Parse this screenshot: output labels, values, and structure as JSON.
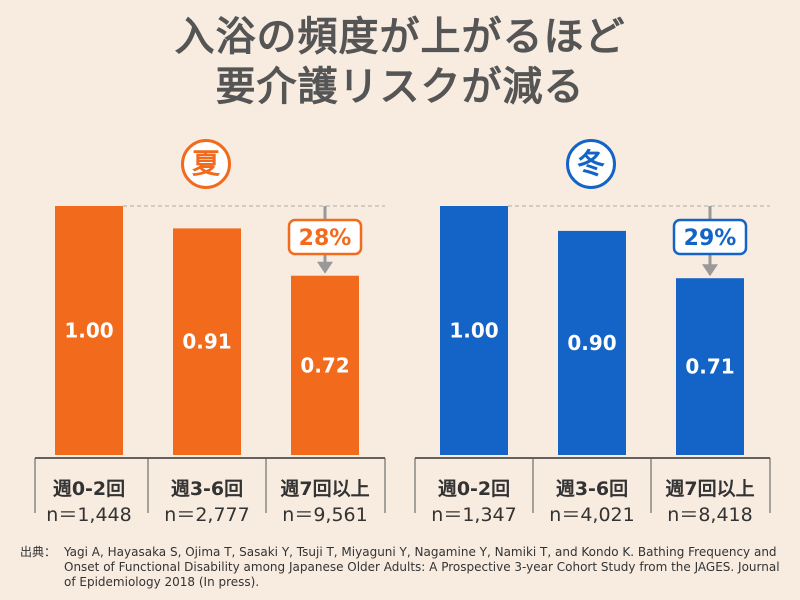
{
  "title": {
    "line1": "入浴の頻度が上がるほど",
    "line2": "要介護リスクが減る"
  },
  "source": {
    "lead": "出典：",
    "text": "Yagi A, Hayasaka S, Ojima T, Sasaki Y, Tsuji T, Miyaguni Y, Nagamine Y, Namiki T, and Kondo K. Bathing Frequency and Onset of Functional Disability among Japanese Older Adults: A Prospective 3-year Cohort Study from the JAGES. Journal of Epidemiology 2018 (In press)."
  },
  "chart_data": [
    {
      "type": "bar",
      "title": "夏",
      "color": "#f26a1b",
      "categories": [
        "週0-2回",
        "週3-6回",
        "週7回以上"
      ],
      "n_labels": [
        "n＝1,448",
        "n＝2,777",
        "n＝9,561"
      ],
      "values": [
        1.0,
        0.91,
        0.72
      ],
      "value_labels": [
        "1.00",
        "0.91",
        "0.72"
      ],
      "reduction_label": "28%",
      "ylim": [
        0,
        1.0
      ]
    },
    {
      "type": "bar",
      "title": "冬",
      "color": "#1464c8",
      "categories": [
        "週0-2回",
        "週3-6回",
        "週7回以上"
      ],
      "n_labels": [
        "n＝1,347",
        "n＝4,021",
        "n＝8,418"
      ],
      "values": [
        1.0,
        0.9,
        0.71
      ],
      "value_labels": [
        "1.00",
        "0.90",
        "0.71"
      ],
      "reduction_label": "29%",
      "ylim": [
        0,
        1.0
      ]
    }
  ]
}
